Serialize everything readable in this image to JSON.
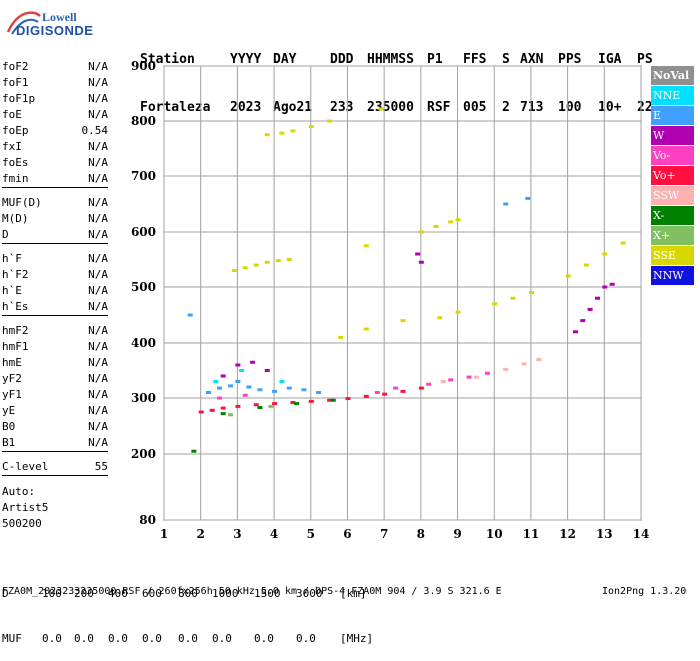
{
  "logo": {
    "line1": "Lowell",
    "line2": "DIGISONDE"
  },
  "header": {
    "labels": [
      "Station",
      "YYYY",
      "DAY",
      "DDD",
      "HHMMSS",
      "P1",
      "FFS",
      "S",
      "AXN",
      "PPS",
      "IGA",
      "PS"
    ],
    "values": [
      "Fortaleza",
      "2023",
      "Ago21",
      "233",
      "235000",
      "RSF",
      "005",
      "2",
      "713",
      "100",
      "10+",
      "22"
    ]
  },
  "params": [
    {
      "name": "foF2",
      "value": "N/A"
    },
    {
      "name": "foF1",
      "value": "N/A"
    },
    {
      "name": "foF1p",
      "value": "N/A"
    },
    {
      "name": "foE",
      "value": "N/A"
    },
    {
      "name": "foEp",
      "value": "0.54"
    },
    {
      "name": "fxI",
      "value": "N/A"
    },
    {
      "name": "foEs",
      "value": "N/A"
    },
    {
      "name": "fmin",
      "value": "N/A"
    },
    {
      "name": "MUF(D)",
      "value": "N/A"
    },
    {
      "name": "M(D)",
      "value": "N/A"
    },
    {
      "name": "D",
      "value": "N/A"
    },
    {
      "name": "h`F",
      "value": "N/A"
    },
    {
      "name": "h`F2",
      "value": "N/A"
    },
    {
      "name": "h`E",
      "value": "N/A"
    },
    {
      "name": "h`Es",
      "value": "N/A"
    },
    {
      "name": "hmF2",
      "value": "N/A"
    },
    {
      "name": "hmF1",
      "value": "N/A"
    },
    {
      "name": "hmE",
      "value": "N/A"
    },
    {
      "name": "yF2",
      "value": "N/A"
    },
    {
      "name": "yF1",
      "value": "N/A"
    },
    {
      "name": "yE",
      "value": "N/A"
    },
    {
      "name": "B0",
      "value": "N/A"
    },
    {
      "name": "B1",
      "value": "N/A"
    },
    {
      "name": "C-level",
      "value": "55"
    }
  ],
  "auto": {
    "line1": "Auto:",
    "line2": "Artist5",
    "line3": "500200"
  },
  "legend": [
    {
      "label": "NoVal",
      "color": "#909090"
    },
    {
      "label": "NNE",
      "color": "#00e0ff"
    },
    {
      "label": "E",
      "color": "#40a0ff"
    },
    {
      "label": "W",
      "color": "#b000b0"
    },
    {
      "label": "Vo-",
      "color": "#ff40c0"
    },
    {
      "label": "Vo+",
      "color": "#ff1040"
    },
    {
      "label": "SSW",
      "color": "#ffb0b0"
    },
    {
      "label": "X-",
      "color": "#008000"
    },
    {
      "label": "X+",
      "color": "#80c060"
    },
    {
      "label": "SSE",
      "color": "#d8d800"
    },
    {
      "label": "NNW",
      "color": "#1010e0"
    }
  ],
  "footer": {
    "d_label": "D",
    "d_values": [
      "100",
      "200",
      "400",
      "600",
      "800",
      "1000",
      "1500",
      "3000"
    ],
    "d_unit": "[km]",
    "muf_label": "MUF",
    "muf_values": [
      "0.0",
      "0.0",
      "0.0",
      "0.0",
      "0.0",
      "0.0",
      "0.0",
      "0.0"
    ],
    "muf_unit": "[MHz]",
    "info": "FZA0M_2023233235000.RSF / 260fx256h 50 kHz 5.0 km / DPS-4 FZA0M 904 / 3.9 S 321.6 E",
    "version": "Ion2Png 1.3.20"
  },
  "chart_data": {
    "type": "scatter",
    "xlim": [
      1,
      14
    ],
    "ylim": [
      80,
      900
    ],
    "x_ticks": [
      1,
      2,
      3,
      4,
      5,
      6,
      7,
      8,
      9,
      10,
      11,
      12,
      13,
      14
    ],
    "y_ticks": [
      80,
      200,
      300,
      400,
      500,
      600,
      700,
      800,
      900
    ],
    "grid": true,
    "legend_placement": "right",
    "traces": [
      {
        "name": "SSE",
        "color": "#d8d800",
        "points": [
          [
            3.8,
            775
          ],
          [
            4.2,
            778
          ],
          [
            4.5,
            782
          ],
          [
            5.0,
            790
          ],
          [
            5.5,
            800
          ],
          [
            6.9,
            822
          ],
          [
            2.9,
            530
          ],
          [
            3.2,
            535
          ],
          [
            3.5,
            540
          ],
          [
            3.8,
            545
          ],
          [
            4.1,
            548
          ],
          [
            4.4,
            550
          ],
          [
            6.5,
            575
          ],
          [
            8.0,
            600
          ],
          [
            8.4,
            610
          ],
          [
            8.8,
            618
          ],
          [
            9.0,
            622
          ],
          [
            5.8,
            410
          ],
          [
            6.5,
            425
          ],
          [
            7.5,
            440
          ],
          [
            8.5,
            445
          ],
          [
            9.0,
            455
          ],
          [
            10.0,
            470
          ],
          [
            10.5,
            480
          ],
          [
            11.0,
            490
          ],
          [
            12.0,
            520
          ],
          [
            12.5,
            540
          ],
          [
            13.0,
            560
          ],
          [
            13.5,
            580
          ]
        ]
      },
      {
        "name": "E",
        "color": "#40a0ff",
        "points": [
          [
            1.7,
            450
          ],
          [
            10.3,
            650
          ],
          [
            10.9,
            660
          ],
          [
            2.2,
            310
          ],
          [
            2.5,
            318
          ],
          [
            2.8,
            322
          ],
          [
            3.0,
            330
          ],
          [
            3.3,
            320
          ],
          [
            3.6,
            315
          ],
          [
            4.0,
            312
          ],
          [
            4.4,
            318
          ],
          [
            4.8,
            315
          ],
          [
            5.2,
            310
          ]
        ]
      },
      {
        "name": "W",
        "color": "#b000b0",
        "points": [
          [
            7.9,
            560
          ],
          [
            8.0,
            545
          ],
          [
            12.2,
            420
          ],
          [
            12.4,
            440
          ],
          [
            12.6,
            460
          ],
          [
            12.8,
            480
          ],
          [
            13.0,
            500
          ],
          [
            13.2,
            505
          ],
          [
            2.6,
            340
          ],
          [
            3.0,
            360
          ],
          [
            3.4,
            365
          ],
          [
            3.8,
            350
          ]
        ]
      },
      {
        "name": "Vo+",
        "color": "#ff1040",
        "points": [
          [
            2.0,
            275
          ],
          [
            2.3,
            278
          ],
          [
            2.6,
            282
          ],
          [
            3.0,
            285
          ],
          [
            3.5,
            288
          ],
          [
            4.0,
            290
          ],
          [
            4.5,
            292
          ],
          [
            5.0,
            294
          ],
          [
            5.5,
            296
          ],
          [
            6.0,
            299
          ],
          [
            6.5,
            303
          ],
          [
            7.0,
            307
          ],
          [
            7.5,
            312
          ],
          [
            8.0,
            318
          ]
        ]
      },
      {
        "name": "Vo-",
        "color": "#ff40c0",
        "points": [
          [
            2.5,
            300
          ],
          [
            3.2,
            305
          ],
          [
            6.8,
            310
          ],
          [
            7.3,
            318
          ],
          [
            8.2,
            325
          ],
          [
            8.8,
            333
          ],
          [
            9.3,
            338
          ],
          [
            9.8,
            345
          ]
        ]
      },
      {
        "name": "SSW",
        "color": "#ffb0b0",
        "points": [
          [
            8.6,
            330
          ],
          [
            9.5,
            338
          ],
          [
            10.3,
            352
          ],
          [
            10.8,
            362
          ],
          [
            11.2,
            370
          ]
        ]
      },
      {
        "name": "X-",
        "color": "#008000",
        "points": [
          [
            1.8,
            205
          ],
          [
            2.6,
            272
          ],
          [
            3.6,
            283
          ],
          [
            4.6,
            290
          ],
          [
            5.6,
            296
          ]
        ]
      },
      {
        "name": "NNE",
        "color": "#00e0ff",
        "points": [
          [
            2.4,
            330
          ],
          [
            3.1,
            350
          ],
          [
            4.2,
            330
          ]
        ]
      },
      {
        "name": "X+",
        "color": "#80c060",
        "points": [
          [
            2.8,
            270
          ],
          [
            3.9,
            285
          ]
        ]
      }
    ]
  }
}
